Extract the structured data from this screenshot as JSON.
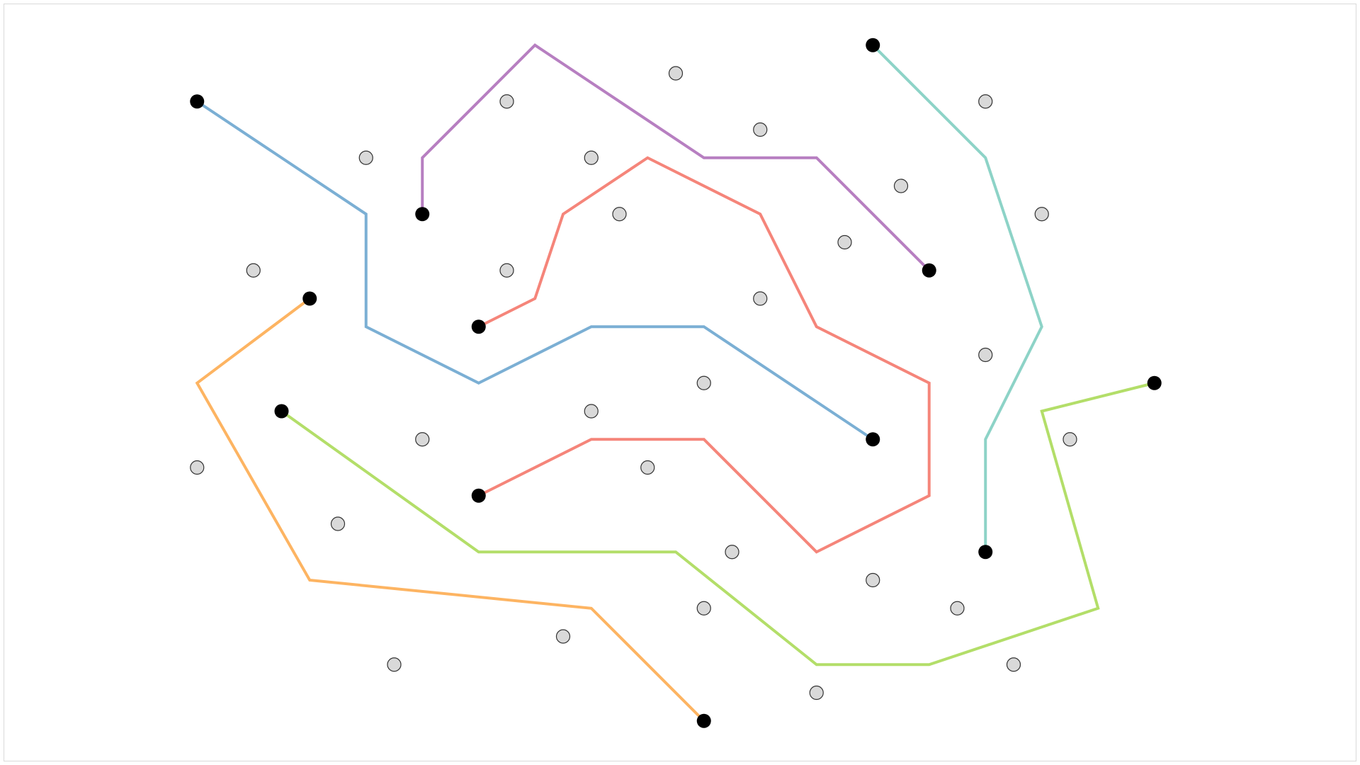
{
  "diagram": {
    "type": "path-puzzle",
    "grid": {
      "cols": 41,
      "rows": 27
    },
    "colors": {
      "node_fill": "#d9d9d9",
      "endpoint_fill": "#000000",
      "frame_stroke": "#dddddd"
    },
    "paths": [
      {
        "name": "blue",
        "color": "#7bafd4",
        "points": [
          [
            7,
            3
          ],
          [
            13,
            7
          ],
          [
            13,
            11
          ],
          [
            17,
            13
          ],
          [
            21,
            11
          ],
          [
            25,
            11
          ],
          [
            31,
            15
          ]
        ]
      },
      {
        "name": "purple",
        "color": "#b77fc1",
        "points": [
          [
            15,
            7
          ],
          [
            15,
            5
          ],
          [
            19,
            1
          ],
          [
            25,
            5
          ],
          [
            29,
            5
          ],
          [
            33,
            9
          ]
        ]
      },
      {
        "name": "red-upper",
        "color": "#f5857a",
        "points": [
          [
            17,
            11
          ],
          [
            19,
            10
          ],
          [
            20,
            7
          ],
          [
            23,
            5
          ],
          [
            27,
            7
          ],
          [
            29,
            11
          ],
          [
            33,
            13
          ],
          [
            33,
            17
          ],
          [
            29,
            19
          ],
          [
            25,
            15
          ],
          [
            21,
            15
          ],
          [
            17,
            17
          ]
        ]
      },
      {
        "name": "teal",
        "color": "#8dd3c7",
        "points": [
          [
            31,
            1
          ],
          [
            35,
            5
          ],
          [
            37,
            11
          ],
          [
            35,
            15
          ],
          [
            35,
            19
          ]
        ]
      },
      {
        "name": "orange",
        "color": "#fdb462",
        "points": [
          [
            11,
            10
          ],
          [
            7,
            13
          ],
          [
            11,
            20
          ],
          [
            21,
            21
          ],
          [
            25,
            25
          ]
        ]
      },
      {
        "name": "green",
        "color": "#b3de69",
        "points": [
          [
            10,
            14
          ],
          [
            17,
            19
          ],
          [
            24,
            19
          ],
          [
            29,
            23
          ],
          [
            33,
            23
          ],
          [
            39,
            21
          ],
          [
            37,
            14
          ],
          [
            41,
            13
          ]
        ]
      }
    ],
    "endpoints": [
      [
        7,
        3
      ],
      [
        31,
        15
      ],
      [
        15,
        7
      ],
      [
        33,
        9
      ],
      [
        17,
        11
      ],
      [
        17,
        17
      ],
      [
        31,
        1
      ],
      [
        35,
        19
      ],
      [
        11,
        10
      ],
      [
        25,
        25
      ],
      [
        10,
        14
      ],
      [
        41,
        13
      ]
    ],
    "nodes": [
      [
        18,
        3
      ],
      [
        24,
        2
      ],
      [
        35,
        3
      ],
      [
        13,
        5
      ],
      [
        21,
        5
      ],
      [
        27,
        4
      ],
      [
        32,
        6
      ],
      [
        22,
        7
      ],
      [
        37,
        7
      ],
      [
        30,
        8
      ],
      [
        9,
        9
      ],
      [
        18,
        9
      ],
      [
        27,
        10
      ],
      [
        35,
        12
      ],
      [
        25,
        13
      ],
      [
        21,
        14
      ],
      [
        15,
        15
      ],
      [
        38,
        15
      ],
      [
        7,
        16
      ],
      [
        23,
        16
      ],
      [
        12,
        18
      ],
      [
        26,
        19
      ],
      [
        31,
        20
      ],
      [
        25,
        21
      ],
      [
        34,
        21
      ],
      [
        20,
        22
      ],
      [
        14,
        23
      ],
      [
        36,
        23
      ],
      [
        29,
        24
      ]
    ]
  }
}
